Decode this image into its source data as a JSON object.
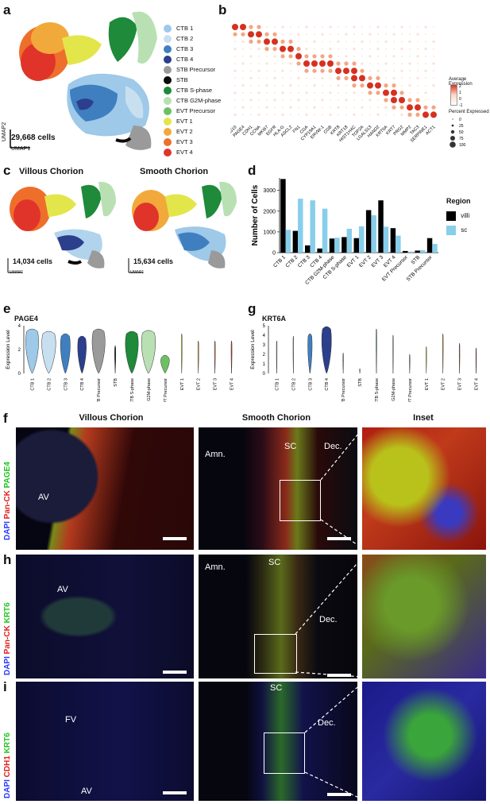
{
  "panels": {
    "a": {
      "letter": "a",
      "cells": "29,668 cells",
      "umap1": "UMAP1",
      "umap2": "UMAP2"
    },
    "b": {
      "letter": "b",
      "genes": [
        "PEG10",
        "PAGE4",
        "CDH1",
        "CCNA",
        "MKI67",
        "EGFR",
        "HLA-G",
        "ASCL2",
        "FN1",
        "CGA",
        "CYP19A1",
        "ERVW-1",
        "CGB",
        "KRT8",
        "KRT18",
        "HIST1H4C",
        "TOP2A",
        "LGALS13",
        "HAND2",
        "KRT6A",
        "KRT7",
        "PRG2",
        "MMP2",
        "TAC3",
        "SERPINE1",
        "ACT1"
      ],
      "legend_avg_title": "Average Expression",
      "legend_avg_ticks": [
        "2",
        "1",
        "0",
        "-1"
      ],
      "legend_pct_title": "Percent Expressed",
      "legend_pct_ticks": [
        "0",
        "25",
        "50",
        "75",
        "100"
      ]
    },
    "c": {
      "letter": "c",
      "left_title": "Villous Chorion",
      "right_title": "Smooth Chorion",
      "left_cells": "14,034 cells",
      "right_cells": "15,634 cells",
      "umap1": "UMAP1",
      "umap2": "UMAP2"
    },
    "d": {
      "letter": "d",
      "ylabel": "Number of Cells",
      "legend_title": "Region",
      "legend_villi": "villi",
      "legend_sc": "sc"
    },
    "e": {
      "letter": "e",
      "gene": "PAGE4",
      "ylabel": "Expression Level",
      "yticks": [
        "4",
        "2",
        "0"
      ]
    },
    "g": {
      "letter": "g",
      "gene": "KRT6A",
      "ylabel": "Expression Level",
      "yticks": [
        "5",
        "4",
        "3",
        "2",
        "1",
        "0"
      ]
    },
    "f": {
      "letter": "f",
      "col1": "Villous Chorion",
      "col2": "Smooth Chorion",
      "col3": "Inset",
      "stain_dapi": "DAPI",
      "stain_mid": "Pan-CK",
      "stain_top": "PAGE4",
      "lab_av": "AV",
      "lab_amn": "Amn.",
      "lab_sc": "SC",
      "lab_dec": "Dec."
    },
    "h": {
      "letter": "h",
      "stain_dapi": "DAPI",
      "stain_mid": "Pan-CK",
      "stain_top": "KRT6",
      "lab_av": "AV",
      "lab_amn": "Amn.",
      "lab_sc": "SC",
      "lab_dec": "Dec."
    },
    "i": {
      "letter": "i",
      "stain_dapi": "DAPI",
      "stain_mid": "CDH1",
      "stain_top": "KRT6",
      "lab_fv": "FV",
      "lab_av": "AV",
      "lab_sc": "SC",
      "lab_dec": "Dec."
    }
  },
  "cell_types": [
    {
      "name": "CTB 1",
      "color": "#9ec9e8"
    },
    {
      "name": "CTB 2",
      "color": "#c8dff0"
    },
    {
      "name": "CTB 3",
      "color": "#3f7fc0"
    },
    {
      "name": "CTB 4",
      "color": "#2c3f8c"
    },
    {
      "name": "STB Precursor",
      "color": "#9a9a9a"
    },
    {
      "name": "STB",
      "color": "#0a0a0a"
    },
    {
      "name": "CTB S-phase",
      "color": "#1e8a3a"
    },
    {
      "name": "CTB G2M-phase",
      "color": "#b9e0b3"
    },
    {
      "name": "EVT Precursor",
      "color": "#6cc063"
    },
    {
      "name": "EVT 1",
      "color": "#e3e64a"
    },
    {
      "name": "EVT 2",
      "color": "#f2a93b"
    },
    {
      "name": "EVT 3",
      "color": "#ee6f2b"
    },
    {
      "name": "EVT 4",
      "color": "#e0342a"
    }
  ],
  "chart_data": [
    {
      "type": "bar",
      "panel": "d",
      "ylabel": "Number of Cells",
      "ylim": [
        0,
        3600
      ],
      "yticks": [
        "0",
        "1000",
        "2000",
        "3000"
      ],
      "categories": [
        "CTB 1",
        "CTB 2",
        "CTB 3",
        "CTB 4",
        "CTB G2M-phase",
        "CTB S-phase",
        "EVT 1",
        "EVT 2",
        "EVT 3",
        "EVT 4",
        "EVT Precursor",
        "STB",
        "STB Precursor"
      ],
      "series": [
        {
          "name": "villi",
          "color": "#000000",
          "values": [
            3550,
            1050,
            350,
            200,
            680,
            750,
            700,
            2050,
            2520,
            1180,
            80,
            100,
            700
          ]
        },
        {
          "name": "sc",
          "color": "#87ceeb",
          "values": [
            1100,
            2600,
            2520,
            2120,
            720,
            1150,
            1270,
            1800,
            1250,
            820,
            50,
            120,
            420
          ]
        }
      ]
    }
  ]
}
